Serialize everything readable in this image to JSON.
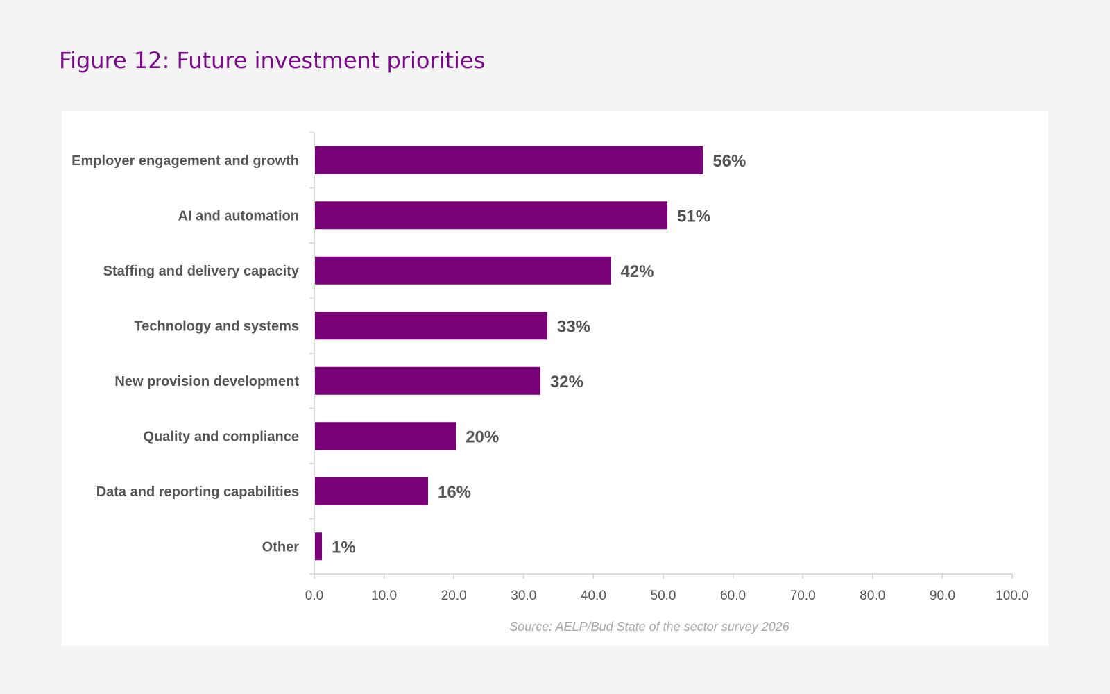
{
  "page": {
    "figure_title": "Figure 12: Future investment priorities"
  },
  "colors": {
    "bar": "#7a0079",
    "title": "#7a0a8a",
    "text": "#555555",
    "axis": "#d0d0d0",
    "panel_background": "#ffffff",
    "page_background": "#f4f4f4"
  },
  "chart_data": {
    "type": "bar",
    "orientation": "horizontal",
    "categories": [
      "Employer engagement and growth",
      "AI and automation",
      "Staffing and delivery capacity",
      "Technology and systems",
      "New provision development",
      "Quality and compliance",
      "Data and reporting capabilities",
      "Other"
    ],
    "values": [
      55.6,
      50.5,
      42.4,
      33.3,
      32.3,
      20.2,
      16.2,
      1.0
    ],
    "value_labels": [
      "56%",
      "51%",
      "42%",
      "33%",
      "32%",
      "20%",
      "16%",
      "1%"
    ],
    "xlim": [
      0,
      100
    ],
    "xticks": [
      "0.0",
      "10.0",
      "20.0",
      "30.0",
      "40.0",
      "50.0",
      "60.0",
      "70.0",
      "80.0",
      "90.0",
      "100.0"
    ],
    "grid": false,
    "legend": "none",
    "source": "Source: AELP/Bud State of the sector survey 2026"
  }
}
